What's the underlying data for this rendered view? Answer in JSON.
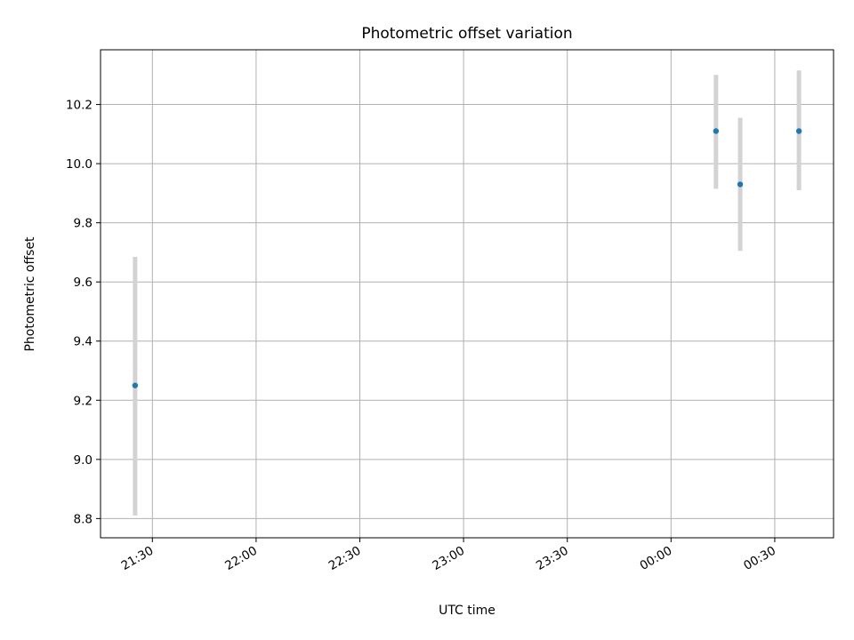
{
  "chart_data": {
    "type": "scatter",
    "title": "Photometric offset variation",
    "xlabel": "UTC time",
    "ylabel": "Photometric offset",
    "x_axis": {
      "type": "time",
      "range": [
        "21:15",
        "00:47"
      ],
      "ticks": [
        "21:30",
        "22:00",
        "22:30",
        "23:00",
        "23:30",
        "00:00",
        "00:30"
      ]
    },
    "y_axis": {
      "range": [
        8.735,
        10.385
      ],
      "ticks": [
        "8.8",
        "9.0",
        "9.2",
        "9.4",
        "9.6",
        "9.8",
        "10.0",
        "10.2"
      ]
    },
    "grid": true,
    "series": [
      {
        "marker_color": "#1f77b4",
        "errorbar_color": "#d3d3d3",
        "points": [
          {
            "x": "21:25",
            "y": 9.25,
            "err_low": 8.81,
            "err_high": 9.685
          },
          {
            "x": "00:13",
            "y": 10.11,
            "err_low": 9.915,
            "err_high": 10.3
          },
          {
            "x": "00:20",
            "y": 9.93,
            "err_low": 9.705,
            "err_high": 10.155
          },
          {
            "x": "00:37",
            "y": 10.11,
            "err_low": 9.91,
            "err_high": 10.315
          }
        ]
      }
    ]
  }
}
